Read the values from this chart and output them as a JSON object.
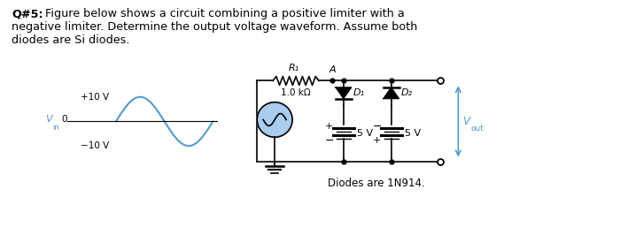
{
  "title_bold": "Q#5:",
  "title_rest": " Figure below shows a circuit combining a positive limiter with a",
  "title_line2": "negative limiter. Determine the output voltage waveform. Assume both",
  "title_line3": "diodes are Si diodes.",
  "R1_label": "R₁",
  "R1_value": "1.0 kΩ",
  "D1_label": "D₁",
  "D2_label": "D₂",
  "V1_label": "5 V",
  "V2_label": "5 V",
  "Vout_label": "V",
  "Vout_sub": "out",
  "Vin_italic": "V",
  "Vin_sub": "in",
  "plus10": "+10 V",
  "minus10": "−10 V",
  "node_A": "A",
  "diodes_label": "Diodes are 1N914.",
  "bg_color": "#ffffff",
  "sine_color": "#5599cc",
  "vout_arrow_color": "#5599cc",
  "vout_text_color": "#5599cc",
  "vin_text_color": "#5599cc"
}
